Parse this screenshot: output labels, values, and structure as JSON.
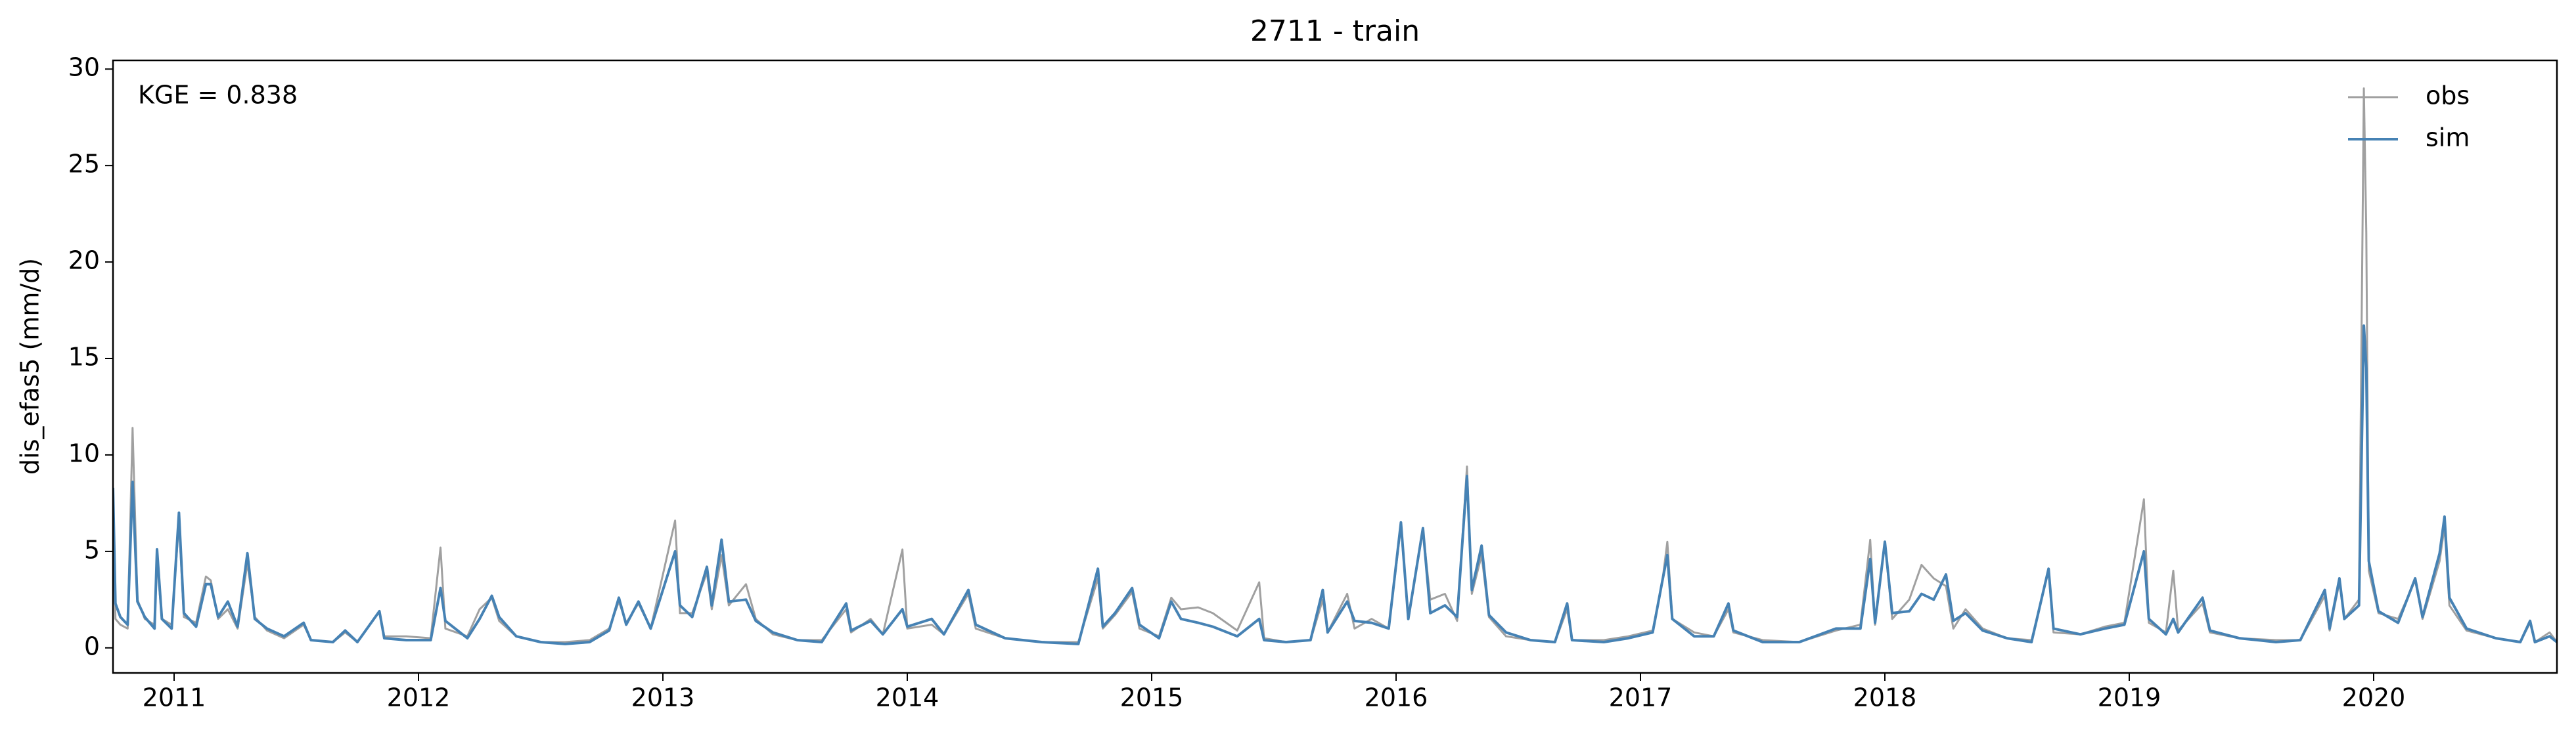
{
  "chart_data": {
    "type": "line",
    "title": "2711 - train",
    "ylabel": "dis_efas5 (mm/d)",
    "annotation": "KGE = 0.838",
    "legend": "upper right",
    "xlim": [
      2010.75,
      2020.75
    ],
    "xticks": [
      2011,
      2012,
      2013,
      2014,
      2015,
      2016,
      2017,
      2018,
      2019,
      2020
    ],
    "ylim": [
      -1.3,
      30.45
    ],
    "yticks": [
      0,
      5,
      10,
      15,
      20,
      25,
      30
    ],
    "x": [
      2010.75,
      2010.76,
      2010.78,
      2010.81,
      2010.83,
      2010.85,
      2010.88,
      2010.92,
      2010.93,
      2010.95,
      2010.99,
      2011.02,
      2011.04,
      2011.09,
      2011.13,
      2011.15,
      2011.18,
      2011.22,
      2011.26,
      2011.3,
      2011.33,
      2011.38,
      2011.45,
      2011.53,
      2011.56,
      2011.65,
      2011.7,
      2011.75,
      2011.84,
      2011.86,
      2011.95,
      2012.05,
      2012.09,
      2012.11,
      2012.2,
      2012.25,
      2012.3,
      2012.33,
      2012.4,
      2012.5,
      2012.6,
      2012.7,
      2012.78,
      2012.82,
      2012.85,
      2012.9,
      2012.95,
      2013.05,
      2013.07,
      2013.12,
      2013.18,
      2013.2,
      2013.24,
      2013.27,
      2013.34,
      2013.38,
      2013.45,
      2013.55,
      2013.65,
      2013.75,
      2013.77,
      2013.85,
      2013.9,
      2013.98,
      2014.0,
      2014.1,
      2014.15,
      2014.25,
      2014.28,
      2014.4,
      2014.55,
      2014.7,
      2014.78,
      2014.8,
      2014.85,
      2014.92,
      2014.95,
      2015.03,
      2015.08,
      2015.12,
      2015.19,
      2015.25,
      2015.35,
      2015.44,
      2015.46,
      2015.55,
      2015.65,
      2015.7,
      2015.72,
      2015.8,
      2015.83,
      2015.9,
      2015.97,
      2016.02,
      2016.05,
      2016.11,
      2016.14,
      2016.2,
      2016.25,
      2016.29,
      2016.31,
      2016.35,
      2016.38,
      2016.45,
      2016.55,
      2016.65,
      2016.7,
      2016.72,
      2016.85,
      2016.95,
      2017.05,
      2017.09,
      2017.11,
      2017.13,
      2017.22,
      2017.3,
      2017.36,
      2017.38,
      2017.5,
      2017.65,
      2017.8,
      2017.9,
      2017.94,
      2017.96,
      2018.0,
      2018.03,
      2018.1,
      2018.15,
      2018.2,
      2018.25,
      2018.28,
      2018.33,
      2018.4,
      2018.5,
      2018.6,
      2018.67,
      2018.69,
      2018.8,
      2018.9,
      2018.98,
      2019.06,
      2019.08,
      2019.15,
      2019.18,
      2019.2,
      2019.3,
      2019.33,
      2019.45,
      2019.6,
      2019.7,
      2019.8,
      2019.82,
      2019.86,
      2019.88,
      2019.94,
      2019.96,
      2019.97,
      2019.98,
      2020.02,
      2020.1,
      2020.17,
      2020.2,
      2020.27,
      2020.29,
      2020.31,
      2020.38,
      2020.5,
      2020.6,
      2020.64,
      2020.66,
      2020.72,
      2020.75
    ],
    "series": [
      {
        "name": "obs",
        "color": "#a0a0a0",
        "values": [
          8.2,
          1.5,
          1.2,
          1.0,
          11.4,
          2.5,
          1.5,
          1.2,
          4.5,
          1.5,
          1.2,
          6.5,
          1.6,
          1.3,
          3.7,
          3.5,
          1.5,
          2.0,
          1.0,
          4.4,
          1.6,
          0.9,
          0.5,
          1.2,
          0.4,
          0.3,
          0.8,
          0.3,
          1.9,
          0.6,
          0.6,
          0.5,
          5.2,
          1.0,
          0.6,
          2.0,
          2.6,
          1.4,
          0.6,
          0.3,
          0.3,
          0.4,
          1.0,
          2.4,
          1.3,
          2.3,
          1.0,
          6.6,
          1.8,
          1.8,
          3.9,
          2.0,
          4.8,
          2.2,
          3.3,
          1.5,
          0.7,
          0.4,
          0.4,
          2.0,
          0.8,
          1.5,
          0.7,
          5.1,
          1.0,
          1.2,
          0.7,
          2.8,
          1.0,
          0.5,
          0.3,
          0.3,
          3.6,
          1.0,
          1.7,
          2.9,
          1.0,
          0.6,
          2.6,
          2.0,
          2.1,
          1.8,
          0.9,
          3.4,
          0.5,
          0.3,
          0.4,
          2.5,
          0.8,
          2.8,
          1.0,
          1.5,
          1.0,
          6.3,
          1.6,
          6.1,
          2.5,
          2.8,
          1.4,
          9.4,
          2.8,
          4.8,
          1.6,
          0.6,
          0.4,
          0.3,
          2.0,
          0.4,
          0.4,
          0.6,
          0.9,
          3.5,
          5.5,
          1.5,
          0.8,
          0.6,
          2.0,
          0.8,
          0.4,
          0.3,
          0.9,
          1.2,
          5.6,
          1.2,
          5.5,
          1.5,
          2.5,
          4.3,
          3.6,
          3.2,
          1.0,
          2.0,
          1.0,
          0.5,
          0.4,
          4.0,
          0.8,
          0.7,
          1.1,
          1.3,
          7.7,
          1.3,
          0.8,
          4.0,
          0.9,
          2.3,
          0.8,
          0.5,
          0.4,
          0.4,
          2.7,
          0.9,
          3.4,
          1.5,
          2.5,
          29.0,
          21.5,
          4.0,
          1.8,
          1.5,
          3.5,
          1.5,
          4.5,
          6.3,
          2.2,
          0.9,
          0.5,
          0.3,
          1.3,
          0.3,
          0.8,
          0.3
        ]
      },
      {
        "name": "sim",
        "color": "#4682b4",
        "values": [
          8.3,
          2.3,
          1.6,
          1.2,
          8.6,
          2.4,
          1.6,
          1.0,
          5.1,
          1.5,
          1.0,
          7.0,
          1.8,
          1.1,
          3.3,
          3.3,
          1.6,
          2.4,
          1.1,
          4.9,
          1.5,
          1.0,
          0.6,
          1.3,
          0.4,
          0.3,
          0.9,
          0.3,
          1.9,
          0.5,
          0.4,
          0.4,
          3.1,
          1.4,
          0.5,
          1.5,
          2.7,
          1.6,
          0.6,
          0.3,
          0.2,
          0.3,
          0.9,
          2.6,
          1.2,
          2.4,
          1.0,
          5.0,
          2.2,
          1.6,
          4.2,
          2.2,
          5.6,
          2.4,
          2.5,
          1.4,
          0.8,
          0.4,
          0.3,
          2.3,
          0.9,
          1.4,
          0.7,
          2.0,
          1.1,
          1.5,
          0.7,
          3.0,
          1.2,
          0.5,
          0.3,
          0.2,
          4.1,
          1.1,
          1.8,
          3.1,
          1.2,
          0.5,
          2.4,
          1.5,
          1.3,
          1.1,
          0.6,
          1.5,
          0.4,
          0.3,
          0.4,
          3.0,
          0.8,
          2.4,
          1.4,
          1.3,
          1.0,
          6.5,
          1.5,
          6.2,
          1.8,
          2.2,
          1.6,
          8.9,
          3.0,
          5.3,
          1.7,
          0.8,
          0.4,
          0.3,
          2.3,
          0.4,
          0.3,
          0.5,
          0.8,
          3.5,
          4.8,
          1.5,
          0.6,
          0.6,
          2.3,
          0.9,
          0.3,
          0.3,
          1.0,
          1.0,
          4.6,
          1.3,
          5.5,
          1.8,
          1.9,
          2.8,
          2.5,
          3.8,
          1.4,
          1.8,
          0.9,
          0.5,
          0.3,
          4.1,
          1.0,
          0.7,
          1.0,
          1.2,
          5.0,
          1.5,
          0.7,
          1.5,
          0.8,
          2.6,
          0.9,
          0.5,
          0.3,
          0.4,
          3.0,
          1.0,
          3.6,
          1.5,
          2.2,
          16.7,
          14.5,
          4.5,
          1.9,
          1.3,
          3.6,
          1.6,
          4.9,
          6.8,
          2.6,
          1.0,
          0.5,
          0.3,
          1.4,
          0.3,
          0.6,
          0.3
        ]
      }
    ]
  }
}
